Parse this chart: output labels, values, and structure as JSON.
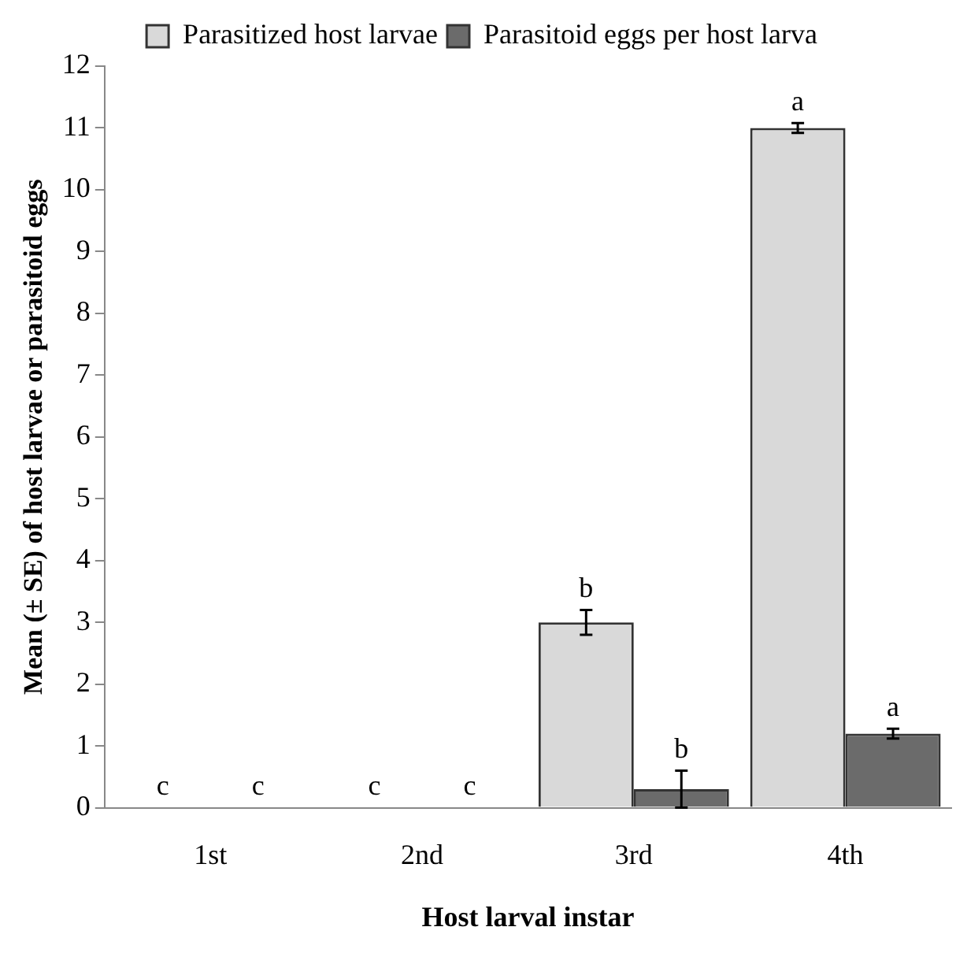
{
  "chart_data": {
    "type": "bar",
    "xlabel": "Host larval instar",
    "ylabel": "Mean (± SE) of host larvae or parasitoid eggs",
    "categories": [
      "1st",
      "2nd",
      "3rd",
      "4th"
    ],
    "series": [
      {
        "name": "Parasitized host larvae",
        "color": "#d9d9d9",
        "values": [
          0,
          0,
          3,
          11
        ],
        "errors": [
          null,
          null,
          0.2,
          0.08
        ]
      },
      {
        "name": "Parasitoid eggs per host larva",
        "color": "#6b6b6b",
        "values": [
          0,
          0,
          0.3,
          1.2
        ],
        "errors": [
          null,
          null,
          0.3,
          0.08
        ]
      }
    ],
    "ylim": [
      0,
      12
    ],
    "yticks": [
      0,
      1,
      2,
      3,
      4,
      5,
      6,
      7,
      8,
      9,
      10,
      11,
      12
    ],
    "grid": false,
    "legend": "top",
    "annotations": [
      {
        "text": "c",
        "x": "1st",
        "y": 0
      },
      {
        "text": "c",
        "x": "1st",
        "y": 0
      },
      {
        "text": "c",
        "x": "2nd",
        "y": 0
      },
      {
        "text": "c",
        "x": "2nd",
        "y": 0
      },
      {
        "text": "b",
        "x": "3rd",
        "y": 3
      },
      {
        "text": "b",
        "x": "3rd",
        "y": 0.3
      },
      {
        "text": "a",
        "x": "4th",
        "y": 11
      },
      {
        "text": "a",
        "x": "4th",
        "y": 1.2
      }
    ]
  }
}
